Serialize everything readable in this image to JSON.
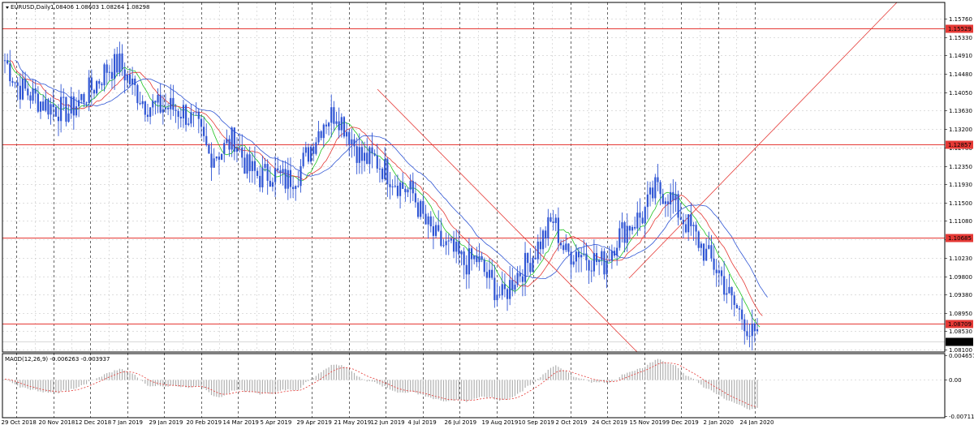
{
  "chart_data": [
    {
      "type": "candlestick",
      "title": "EURUSD,Daily",
      "ohlc_text": "1.08406 1.08603 1.08264 1.08298",
      "y_ticks": [
        "1.15760",
        "1.15330",
        "1.14910",
        "1.14480",
        "1.14050",
        "1.13630",
        "1.13200",
        "1.12780",
        "1.12350",
        "1.11930",
        "1.11500",
        "1.11080",
        "1.10650",
        "1.10230",
        "1.09800",
        "1.09380",
        "1.08950",
        "1.08530",
        "1.08100"
      ],
      "ylim": [
        1.0805,
        1.1613
      ],
      "x_ticks": [
        "29 Oct 2018",
        "20 Nov 2018",
        "12 Dec 2018",
        "7 Jan 2019",
        "29 Jan 2019",
        "20 Feb 2019",
        "14 Mar 2019",
        "5 Apr 2019",
        "29 Apr 2019",
        "21 May 2019",
        "12 Jun 2019",
        "4 Jul 2019",
        "26 Jul 2019",
        "19 Aug 2019",
        "10 Sep 2019",
        "2 Oct 2019",
        "24 Oct 2019",
        "15 Nov 2019",
        "9 Dec 2019",
        "2 Jan 2020",
        "24 Jan 2020"
      ],
      "price_lines": [
        {
          "label": "1.15529",
          "value": 1.15529
        },
        {
          "label": "1.12857",
          "value": 1.12857
        },
        {
          "label": "1.10685",
          "value": 1.10685
        },
        {
          "label": "1.08709",
          "value": 1.08709
        }
      ],
      "current_price": "1.08298",
      "close_profile": [
        [
          0,
          1.148
        ],
        [
          5,
          1.142
        ],
        [
          10,
          1.14
        ],
        [
          15,
          1.138
        ],
        [
          20,
          1.137
        ],
        [
          25,
          1.136
        ],
        [
          30,
          1.139
        ],
        [
          35,
          1.142
        ],
        [
          40,
          1.146
        ],
        [
          45,
          1.147
        ],
        [
          50,
          1.142
        ],
        [
          55,
          1.138
        ],
        [
          60,
          1.137
        ],
        [
          65,
          1.137
        ],
        [
          70,
          1.136
        ],
        [
          75,
          1.133
        ],
        [
          80,
          1.126
        ],
        [
          85,
          1.127
        ],
        [
          90,
          1.13
        ],
        [
          95,
          1.123
        ],
        [
          100,
          1.121
        ],
        [
          105,
          1.122
        ],
        [
          110,
          1.12
        ],
        [
          115,
          1.122
        ],
        [
          120,
          1.128
        ],
        [
          125,
          1.134
        ],
        [
          130,
          1.136
        ],
        [
          135,
          1.131
        ],
        [
          140,
          1.125
        ],
        [
          145,
          1.125
        ],
        [
          150,
          1.122
        ],
        [
          155,
          1.119
        ],
        [
          160,
          1.117
        ],
        [
          165,
          1.11
        ],
        [
          170,
          1.106
        ],
        [
          175,
          1.104
        ],
        [
          180,
          1.101
        ],
        [
          185,
          1.102
        ],
        [
          190,
          1.097
        ],
        [
          195,
          1.093
        ],
        [
          200,
          1.098
        ],
        [
          205,
          1.101
        ],
        [
          210,
          1.106
        ],
        [
          215,
          1.111
        ],
        [
          220,
          1.103
        ],
        [
          225,
          1.104
        ],
        [
          230,
          1.102
        ],
        [
          235,
          1.101
        ],
        [
          240,
          1.107
        ],
        [
          245,
          1.11
        ],
        [
          250,
          1.112
        ],
        [
          255,
          1.118
        ],
        [
          260,
          1.117
        ],
        [
          265,
          1.112
        ],
        [
          270,
          1.108
        ],
        [
          275,
          1.103
        ],
        [
          280,
          1.099
        ],
        [
          285,
          1.092
        ],
        [
          290,
          1.088
        ],
        [
          292,
          1.085
        ],
        [
          295,
          1.083
        ]
      ]
    },
    {
      "type": "line",
      "title": "MACD(12,26,9) -0.006263 -0.003937",
      "y_ticks": [
        "0.004657",
        "0.00",
        "-0.007119"
      ],
      "ylim": [
        -0.0075,
        0.005
      ]
    }
  ]
}
